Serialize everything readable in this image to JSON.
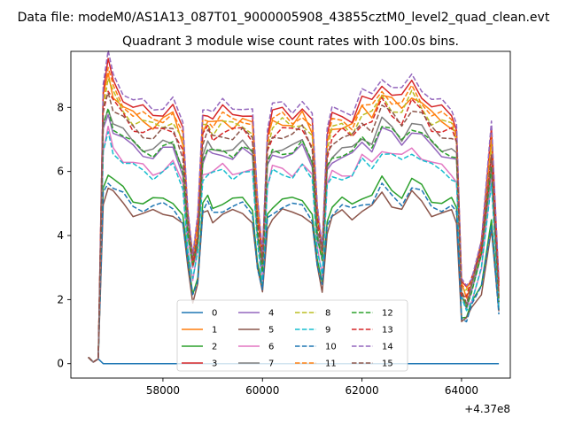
{
  "figure": {
    "suptitle": "Data file: modeM0/AS1A13_087T01_9000005908_43855cztM0_level2_quad_clean.evt",
    "title": "Quadrant 3 module wise count rates with 100.0s bins.",
    "offset_label": "+4.37e8"
  },
  "chart_data": {
    "type": "line",
    "title": "Quadrant 3 module wise count rates with 100.0s bins.",
    "xlabel": "",
    "ylabel": "",
    "x_offset": 437000000,
    "xlim": [
      56150,
      64980
    ],
    "ylim": [
      -0.45,
      9.75
    ],
    "xticks": [
      58000,
      60000,
      62000,
      64000
    ],
    "xtick_labels": [
      "58000",
      "60000",
      "62000",
      "64000"
    ],
    "yticks": [
      0,
      2,
      4,
      6,
      8
    ],
    "ytick_labels": [
      "0",
      "2",
      "4",
      "6",
      "8"
    ],
    "grid": false,
    "legend_position": "lower-center",
    "legend_columns": 4,
    "base_profile": {
      "x": [
        56500,
        56600,
        56700,
        56800,
        56900,
        57000,
        57200,
        57400,
        57600,
        57800,
        58000,
        58200,
        58400,
        58500,
        58600,
        58700,
        58800,
        58900,
        59000,
        59200,
        59400,
        59600,
        59800,
        59900,
        60000,
        60100,
        60200,
        60400,
        60600,
        60800,
        61000,
        61100,
        61200,
        61300,
        61400,
        61600,
        61800,
        62000,
        62200,
        62400,
        62600,
        62800,
        63000,
        63200,
        63400,
        63600,
        63800,
        63900,
        64000,
        64100,
        64200,
        64400,
        64600,
        64750
      ],
      "y": [
        0.2,
        0.05,
        0.15,
        7.6,
        8.3,
        7.8,
        7.4,
        7.1,
        7.0,
        6.9,
        7.0,
        7.1,
        6.4,
        4.3,
        3.0,
        3.9,
        6.8,
        7.0,
        6.8,
        7.0,
        6.9,
        7.0,
        6.8,
        4.4,
        3.1,
        6.4,
        6.9,
        7.0,
        6.9,
        7.1,
        6.6,
        4.3,
        3.3,
        6.3,
        6.8,
        6.9,
        6.8,
        7.3,
        7.2,
        7.8,
        7.5,
        7.3,
        7.8,
        7.5,
        7.1,
        7.0,
        6.9,
        6.6,
        2.2,
        2.0,
        2.4,
        3.4,
        6.4,
        2.2
      ]
    },
    "series": [
      {
        "name": "0",
        "color": "#1f77b4",
        "dash": "solid",
        "offset": 0,
        "zero": true
      },
      {
        "name": "1",
        "color": "#ff7f0e",
        "dash": "solid",
        "offset": 0.6
      },
      {
        "name": "2",
        "color": "#2ca02c",
        "dash": "solid",
        "offset": -1.9
      },
      {
        "name": "3",
        "color": "#d62728",
        "dash": "solid",
        "offset": 0.9
      },
      {
        "name": "4",
        "color": "#9467bd",
        "dash": "solid",
        "offset": -0.4
      },
      {
        "name": "5",
        "color": "#8c564b",
        "dash": "solid",
        "offset": -2.3
      },
      {
        "name": "6",
        "color": "#e377c2",
        "dash": "solid",
        "offset": -0.9
      },
      {
        "name": "7",
        "color": "#7f7f7f",
        "dash": "solid",
        "offset": -0.2
      },
      {
        "name": "8",
        "color": "#bcbd22",
        "dash": "dash",
        "offset": 0.5
      },
      {
        "name": "9",
        "color": "#17becf",
        "dash": "dash",
        "offset": -1.0
      },
      {
        "name": "10",
        "color": "#1f77b4",
        "dash": "dash",
        "offset": -2.1
      },
      {
        "name": "11",
        "color": "#ff7f0e",
        "dash": "dash",
        "offset": 0.7
      },
      {
        "name": "12",
        "color": "#2ca02c",
        "dash": "dash",
        "offset": -0.3
      },
      {
        "name": "13",
        "color": "#d62728",
        "dash": "dash",
        "offset": 0.3
      },
      {
        "name": "14",
        "color": "#9467bd",
        "dash": "dash",
        "offset": 1.1
      },
      {
        "name": "15",
        "color": "#8c564b",
        "dash": "dash",
        "offset": 0.2
      }
    ]
  }
}
